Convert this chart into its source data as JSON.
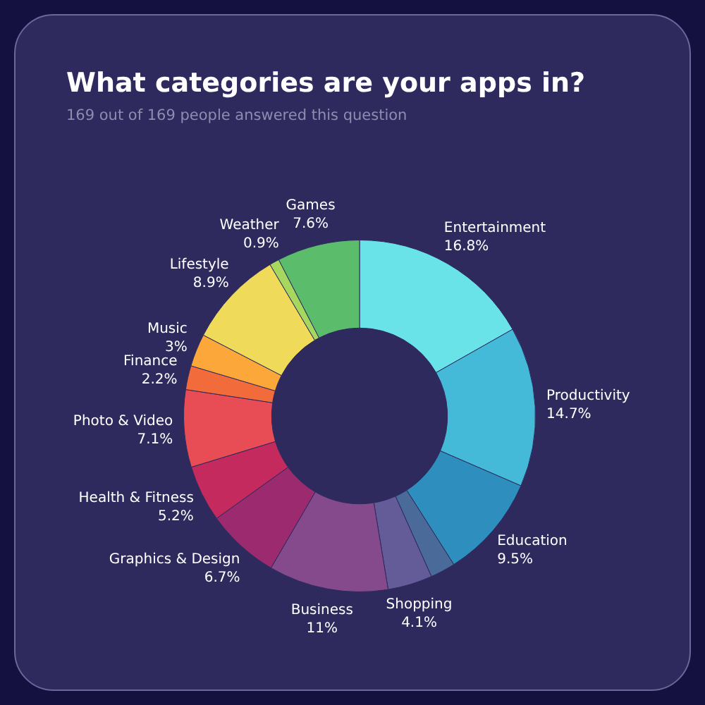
{
  "chart_data": {
    "type": "donut",
    "title": "What categories are your apps in?",
    "subtitle": "169 out of 169 people answered this question",
    "categories": [
      "Entertainment",
      "Productivity",
      "Education",
      null,
      "Shopping",
      "Business",
      "Graphics & Design",
      "Health & Fitness",
      "Photo & Video",
      "Finance",
      "Music",
      "Lifestyle",
      "Weather",
      "Games"
    ],
    "values": [
      16.8,
      14.7,
      9.5,
      2.3,
      4.1,
      11,
      6.7,
      5.2,
      7.1,
      2.2,
      3,
      8.9,
      0.9,
      7.6
    ],
    "value_labels": [
      "16.8%",
      "14.7%",
      "9.5%",
      null,
      "4.1%",
      "11%",
      "6.7%",
      "5.2%",
      "7.1%",
      "2.2%",
      "3%",
      "8.9%",
      "0.9%",
      "7.6%"
    ],
    "colors": [
      "#6ae3e8",
      "#45b9d8",
      "#2e8fbf",
      "#4a6b9a",
      "#635c99",
      "#844a8c",
      "#9c2a6f",
      "#c42a5e",
      "#e84d55",
      "#f26b3a",
      "#fba73a",
      "#f0da5a",
      "#a6d860",
      "#5bbd6b"
    ]
  }
}
